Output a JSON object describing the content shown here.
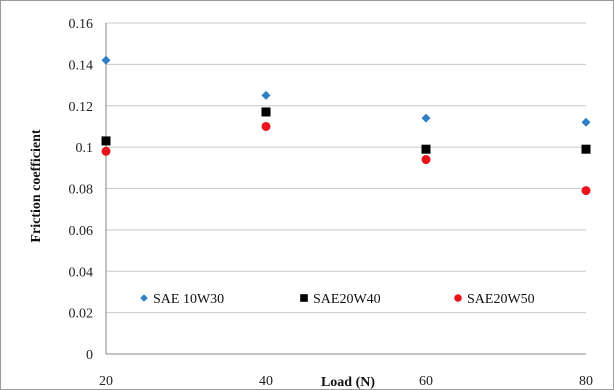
{
  "chart_data": {
    "type": "scatter",
    "xlabel": "Load (N)",
    "ylabel": "Friction coefficient",
    "x": [
      20,
      40,
      60,
      80
    ],
    "xlim": [
      20,
      80
    ],
    "ylim": [
      0,
      0.16
    ],
    "x_ticks": [
      "20",
      "40",
      "60",
      "80"
    ],
    "y_ticks": [
      "0",
      "0.02",
      "0.04",
      "0.06",
      "0.08",
      "0.1",
      "0.12",
      "0.14",
      "0.16"
    ],
    "grid": true,
    "legend_position": "bottom-inside",
    "series": [
      {
        "name": "SAE 10W30",
        "marker": "diamond",
        "color": "#2e7fc4",
        "values": [
          0.142,
          0.125,
          0.114,
          0.112
        ]
      },
      {
        "name": "SAE20W40",
        "marker": "square",
        "color": "#000000",
        "values": [
          0.103,
          0.117,
          0.099,
          0.099
        ]
      },
      {
        "name": "SAE20W50",
        "marker": "circle",
        "color": "#e8141b",
        "values": [
          0.098,
          0.11,
          0.094,
          0.079
        ]
      }
    ]
  }
}
